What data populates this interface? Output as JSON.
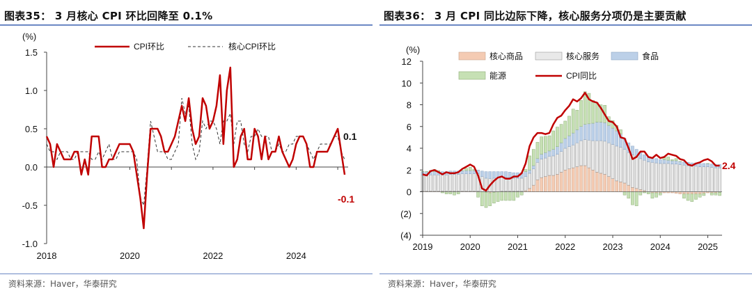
{
  "chart_data": [
    {
      "type": "line",
      "title": "图表35：  3 月核心 CPI 环比回降至 0.1%",
      "source": "资料来源：Haver，华泰研究",
      "ylabel": "(%)",
      "ylim": [
        -1.0,
        1.5
      ],
      "yticks": [
        "1.5",
        "1.0",
        "0.5",
        "0.0",
        "-0.5",
        "-1.0"
      ],
      "yticks_values": [
        1.5,
        1.0,
        0.5,
        0.0,
        -0.5,
        -1.0
      ],
      "xticks": [
        "2018",
        "2020",
        "2022",
        "2024"
      ],
      "xticks_values": [
        2018,
        2020,
        2022,
        2024
      ],
      "xlim": [
        2018.0,
        2025.25
      ],
      "legend": [
        "CPI环比",
        "核心CPI环比"
      ],
      "colors": {
        "headline": "#c00000",
        "core": "#333333"
      },
      "annotations": [
        {
          "text": "0.1",
          "value": 0.1,
          "color": "#111111"
        },
        {
          "text": "-0.1",
          "value": -0.1,
          "color": "#c00000"
        }
      ],
      "series": [
        {
          "name": "CPI环比",
          "x_start": 2018.0,
          "step_months": 1,
          "values": [
            0.4,
            0.3,
            0.0,
            0.3,
            0.2,
            0.1,
            0.1,
            0.1,
            0.2,
            0.2,
            -0.1,
            0.1,
            -0.1,
            0.4,
            0.4,
            0.4,
            0.0,
            0.0,
            0.1,
            0.1,
            0.2,
            0.3,
            0.3,
            0.3,
            0.3,
            0.2,
            -0.1,
            -0.4,
            -0.8,
            -0.1,
            0.5,
            0.5,
            0.5,
            0.4,
            0.2,
            0.2,
            0.3,
            0.4,
            0.6,
            0.8,
            0.6,
            0.9,
            0.5,
            0.3,
            0.4,
            0.9,
            0.8,
            0.5,
            0.6,
            0.8,
            1.2,
            0.3,
            1.0,
            1.3,
            0.0,
            0.1,
            0.4,
            0.5,
            0.1,
            0.1,
            0.5,
            0.4,
            0.1,
            0.4,
            0.1,
            0.2,
            0.2,
            0.4,
            0.2,
            0.1,
            0.0,
            0.1,
            0.3,
            0.4,
            0.4,
            0.3,
            0.0,
            0.0,
            0.2,
            0.2,
            0.2,
            0.2,
            0.3,
            0.4,
            0.5,
            0.2,
            -0.1
          ],
          "annotation": -0.1
        },
        {
          "name": "核心CPI环比",
          "x_start": 2018.0,
          "step_months": 1,
          "values": [
            0.3,
            0.2,
            0.2,
            0.1,
            0.2,
            0.2,
            0.2,
            0.1,
            0.1,
            0.2,
            0.2,
            0.2,
            0.2,
            0.1,
            0.1,
            0.2,
            0.1,
            0.2,
            0.3,
            0.1,
            0.1,
            0.2,
            0.2,
            0.2,
            0.2,
            0.2,
            0.1,
            -0.4,
            -0.5,
            0.0,
            0.6,
            0.4,
            0.2,
            0.2,
            0.2,
            0.1,
            0.1,
            0.2,
            0.3,
            0.9,
            0.7,
            0.8,
            0.3,
            0.1,
            0.2,
            0.6,
            0.5,
            0.6,
            0.6,
            0.5,
            0.3,
            0.6,
            0.6,
            0.7,
            0.3,
            0.6,
            0.6,
            0.3,
            0.2,
            0.4,
            0.4,
            0.5,
            0.4,
            0.4,
            0.4,
            0.2,
            0.2,
            0.3,
            0.2,
            0.2,
            0.3,
            0.3,
            0.4,
            0.4,
            0.4,
            0.3,
            0.2,
            0.1,
            0.2,
            0.3,
            0.3,
            0.3,
            0.3,
            0.4,
            0.4,
            0.2,
            0.1
          ],
          "annotation": 0.1
        }
      ]
    },
    {
      "type": "bar",
      "title": "图表36：  3 月 CPI 同比边际下降，核心服务分项仍是主要贡献",
      "source": "资料来源：Haver，华泰研究",
      "ylabel": "(%)",
      "ylim": [
        -4,
        12
      ],
      "yticks": [
        "12",
        "10",
        "8",
        "6",
        "4",
        "2",
        "0",
        "(2)",
        "(4)"
      ],
      "yticks_values": [
        12,
        10,
        8,
        6,
        4,
        2,
        0,
        -2,
        -4
      ],
      "xticks": [
        "2019",
        "2020",
        "2021",
        "2022",
        "2023",
        "2024",
        "2025"
      ],
      "xticks_values": [
        2019,
        2020,
        2021,
        2022,
        2023,
        2024,
        2025
      ],
      "xlim": [
        2019.0,
        2025.3
      ],
      "legend": [
        "核心商品",
        "核心服务",
        "食品",
        "能源",
        "CPI同比"
      ],
      "colors": {
        "core_goods": "#f4cbb3",
        "core_services": "#e9e9e9",
        "food": "#bcd0e8",
        "energy": "#c6e0b4",
        "cpi": "#c00000"
      },
      "annotation": {
        "text": "2.4",
        "value": 2.4,
        "color": "#c00000"
      },
      "x_start": 2019.0,
      "step_months": 1,
      "series": [
        {
          "name": "核心商品",
          "values": [
            0.05,
            0.05,
            0.05,
            0.05,
            0.05,
            0.05,
            0.05,
            0.05,
            0.05,
            0.05,
            0.05,
            0.05,
            0.05,
            0.05,
            0.05,
            0.0,
            -0.05,
            -0.1,
            -0.05,
            0.0,
            0.05,
            0.05,
            0.05,
            0.05,
            0.05,
            0.05,
            0.1,
            0.3,
            0.6,
            1.1,
            1.3,
            1.4,
            1.5,
            1.5,
            1.6,
            1.8,
            2.0,
            2.1,
            2.2,
            2.3,
            2.4,
            2.4,
            2.2,
            2.0,
            1.8,
            1.7,
            1.6,
            1.4,
            1.2,
            1.0,
            0.9,
            0.8,
            0.6,
            0.4,
            0.3,
            0.2,
            0.1,
            0.0,
            -0.1,
            -0.1,
            -0.1,
            -0.1,
            -0.1,
            -0.1,
            -0.15,
            -0.2,
            -0.2,
            -0.2,
            -0.2,
            -0.2,
            -0.2,
            -0.15,
            -0.1,
            -0.1,
            -0.1,
            -0.05
          ]
        },
        {
          "name": "核心服务",
          "values": [
            1.5,
            1.5,
            1.5,
            1.5,
            1.5,
            1.5,
            1.5,
            1.55,
            1.55,
            1.55,
            1.6,
            1.6,
            1.6,
            1.6,
            1.6,
            1.4,
            1.25,
            1.2,
            1.25,
            1.3,
            1.3,
            1.25,
            1.25,
            1.2,
            1.2,
            1.2,
            1.3,
            1.4,
            1.5,
            1.6,
            1.7,
            1.7,
            1.75,
            1.8,
            1.85,
            1.9,
            2.0,
            2.05,
            2.1,
            2.2,
            2.3,
            2.4,
            2.55,
            2.7,
            2.9,
            3.0,
            3.05,
            3.1,
            3.15,
            3.2,
            3.2,
            3.1,
            3.0,
            3.0,
            2.9,
            2.85,
            2.8,
            2.75,
            2.7,
            2.65,
            2.6,
            2.6,
            2.6,
            2.55,
            2.55,
            2.5,
            2.45,
            2.4,
            2.35,
            2.35,
            2.3,
            2.3,
            2.3,
            2.25,
            2.2,
            2.2
          ]
        },
        {
          "name": "食品",
          "values": [
            0.3,
            0.3,
            0.3,
            0.3,
            0.3,
            0.3,
            0.3,
            0.3,
            0.3,
            0.3,
            0.3,
            0.3,
            0.3,
            0.3,
            0.35,
            0.5,
            0.6,
            0.65,
            0.6,
            0.55,
            0.5,
            0.55,
            0.5,
            0.5,
            0.5,
            0.5,
            0.45,
            0.3,
            0.3,
            0.35,
            0.45,
            0.5,
            0.5,
            0.6,
            0.7,
            0.8,
            0.9,
            1.0,
            1.1,
            1.2,
            1.3,
            1.4,
            1.5,
            1.6,
            1.7,
            1.7,
            1.7,
            1.6,
            1.5,
            1.4,
            1.2,
            1.0,
            0.9,
            0.8,
            0.7,
            0.6,
            0.5,
            0.45,
            0.4,
            0.4,
            0.35,
            0.35,
            0.3,
            0.3,
            0.3,
            0.3,
            0.3,
            0.3,
            0.3,
            0.3,
            0.3,
            0.3,
            0.3,
            0.3,
            0.3,
            0.3
          ]
        },
        {
          "name": "能源",
          "values": [
            0.0,
            0.0,
            0.1,
            0.2,
            0.1,
            -0.1,
            -0.2,
            -0.2,
            -0.3,
            -0.2,
            0.0,
            0.2,
            0.3,
            0.1,
            -0.5,
            -1.3,
            -1.4,
            -1.2,
            -1.0,
            -0.9,
            -0.8,
            -0.8,
            -0.8,
            -0.8,
            -0.5,
            -0.3,
            0.2,
            1.3,
            1.5,
            1.5,
            1.6,
            1.5,
            1.4,
            1.7,
            1.8,
            1.7,
            1.6,
            1.8,
            2.2,
            1.8,
            2.4,
            3.0,
            2.8,
            2.1,
            1.8,
            1.6,
            1.6,
            0.8,
            0.7,
            0.5,
            0.4,
            -0.3,
            -0.6,
            -1.2,
            -1.3,
            -0.3,
            -0.1,
            -0.2,
            -0.5,
            -0.4,
            -0.2,
            0.2,
            0.3,
            0.1,
            0.2,
            0.0,
            -0.4,
            -0.6,
            -0.7,
            -0.5,
            -0.3,
            -0.2,
            0.0,
            -0.2,
            -0.2,
            -0.3
          ]
        },
        {
          "name": "CPI同比",
          "values": [
            1.6,
            1.5,
            1.9,
            2.0,
            1.8,
            1.6,
            1.8,
            1.7,
            1.7,
            1.8,
            2.1,
            2.3,
            2.5,
            2.3,
            1.5,
            0.3,
            0.1,
            0.6,
            1.0,
            1.3,
            1.4,
            1.2,
            1.2,
            1.4,
            1.4,
            1.7,
            2.6,
            4.2,
            5.0,
            5.4,
            5.4,
            5.3,
            5.4,
            6.2,
            6.8,
            7.0,
            7.5,
            7.9,
            8.5,
            8.3,
            8.6,
            9.1,
            8.5,
            8.3,
            8.2,
            7.7,
            7.1,
            6.5,
            6.4,
            6.0,
            5.0,
            4.9,
            4.0,
            3.0,
            3.2,
            3.7,
            3.7,
            3.2,
            3.1,
            3.4,
            3.1,
            3.2,
            3.5,
            3.4,
            3.3,
            3.0,
            2.9,
            2.5,
            2.4,
            2.6,
            2.7,
            2.9,
            3.0,
            2.8,
            2.4,
            2.4
          ]
        }
      ]
    }
  ]
}
